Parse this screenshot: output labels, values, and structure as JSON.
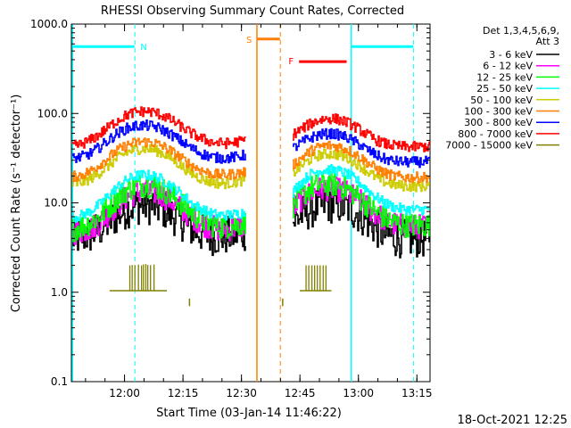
{
  "chart_data": {
    "type": "line",
    "title": "RHESSI Observing Summary Count Rates, Corrected",
    "xlabel": "Start Time (03-Jan-14 11:46:22)",
    "ylabel": "Corrected Count Rate (s⁻¹ detector⁻¹)",
    "y_scale": "log",
    "ylim": [
      0.1,
      1000
    ],
    "xlim_minutes": [
      0,
      92
    ],
    "x_tick_labels": [
      "12:00",
      "12:15",
      "12:30",
      "12:45",
      "13:00",
      "13:15"
    ],
    "x_tick_minutes": [
      13.63,
      28.63,
      43.63,
      58.63,
      73.63,
      88.63
    ],
    "y_tick_labels": [
      "0.1",
      "1.0",
      "10.0",
      "100.0",
      "1000.0"
    ],
    "y_tick_values": [
      0.1,
      1,
      10,
      100,
      1000
    ],
    "legend_header": [
      "Det 1,3,4,5,6,9,",
      "Att 3"
    ],
    "footer_timestamp": "18-Oct-2021 12:25",
    "gaps_minutes": [
      [
        47,
        54
      ]
    ],
    "series": [
      {
        "name": "3 - 6 keV",
        "color": "#000000",
        "values": [
          4,
          4.2,
          4.4,
          5,
          6,
          7.3,
          8.5,
          9.3,
          9.5,
          9.2,
          8.4,
          7.3,
          6.2,
          5.2,
          4.6,
          4.3,
          4.2,
          4.3,
          4.5,
          4.8,
          null,
          null,
          null,
          null,
          6,
          7.3,
          8.5,
          9.4,
          9.7,
          9.5,
          8.8,
          7.8,
          6.5,
          5.3,
          4.5,
          4.1,
          4,
          4,
          4,
          4.1
        ]
      },
      {
        "name": "6 - 12 keV",
        "color": "#ff00ff",
        "values": [
          4.6,
          4.8,
          5.2,
          6,
          7.5,
          9.5,
          11.5,
          13,
          13.6,
          13,
          11.8,
          10.2,
          8.4,
          7,
          6,
          5.4,
          5.1,
          5.1,
          5.3,
          5.7,
          null,
          null,
          null,
          null,
          8.5,
          11,
          13,
          14.2,
          14.5,
          14,
          12.8,
          11,
          9.2,
          7.6,
          6.5,
          5.8,
          5.5,
          5.4,
          5.4,
          5.5
        ]
      },
      {
        "name": "12 - 25 keV",
        "color": "#00ff00",
        "values": [
          5,
          5.4,
          6,
          7,
          9,
          11.5,
          14,
          15.6,
          16,
          15.4,
          13.8,
          11.8,
          9.6,
          7.8,
          6.6,
          5.8,
          5.5,
          5.5,
          5.7,
          6.1,
          null,
          null,
          null,
          null,
          9,
          12,
          14.6,
          16,
          16.4,
          15.8,
          14.2,
          12,
          9.8,
          8,
          6.8,
          6,
          5.7,
          5.6,
          5.6,
          5.7
        ]
      },
      {
        "name": "25 - 50 keV",
        "color": "#00ffff",
        "values": [
          6.8,
          7.2,
          8,
          9.5,
          12,
          15,
          18,
          20,
          20.6,
          19.8,
          17.8,
          15,
          12.4,
          10,
          8.6,
          7.7,
          7.3,
          7.3,
          7.5,
          8,
          null,
          null,
          null,
          null,
          13,
          17,
          21,
          23,
          23.5,
          22.8,
          20.8,
          17.8,
          14.5,
          11.8,
          10,
          9,
          8.5,
          8.4,
          8.4,
          8.5
        ]
      },
      {
        "name": "50 - 100 keV",
        "color": "#cccc00",
        "values": [
          16,
          16.8,
          18.5,
          21.5,
          26,
          31.5,
          36.5,
          39.8,
          40.5,
          39,
          35.5,
          30.5,
          25.5,
          21.5,
          18.8,
          17.2,
          16.5,
          16.6,
          17.2,
          18.3,
          null,
          null,
          null,
          null,
          21,
          26,
          31,
          34.5,
          35.5,
          34.5,
          31.5,
          27.5,
          23,
          19.5,
          17.2,
          16,
          15.5,
          15.3,
          15.3,
          15.5
        ]
      },
      {
        "name": "100 - 300 keV",
        "color": "#ff7f00",
        "values": [
          19.5,
          20.5,
          22.5,
          26.5,
          32,
          38.5,
          44,
          47.5,
          48.3,
          46.8,
          42.5,
          36.8,
          31,
          26.5,
          23.3,
          21.4,
          20.6,
          20.7,
          21.3,
          22.5,
          null,
          null,
          null,
          null,
          26,
          32,
          38,
          42.5,
          44,
          42.8,
          39.3,
          34.3,
          29,
          24.5,
          21.6,
          20,
          19.4,
          19.2,
          19.2,
          19.4
        ]
      },
      {
        "name": "300 - 800 keV",
        "color": "#0000ff",
        "values": [
          31,
          32.5,
          35.5,
          41.5,
          50,
          60,
          68,
          72.5,
          73.5,
          71.5,
          65,
          56.5,
          48,
          41,
          36,
          33,
          31.8,
          31.8,
          32.8,
          34.5,
          null,
          null,
          null,
          null,
          40,
          47,
          53.5,
          58,
          59.5,
          58,
          53.5,
          47,
          40,
          34.5,
          31,
          29.3,
          28.7,
          28.6,
          28.7,
          29
        ]
      },
      {
        "name": "800 - 7000 keV",
        "color": "#ff0000",
        "values": [
          43,
          45,
          50,
          58,
          70,
          84,
          96,
          104,
          106,
          103,
          94,
          82,
          70,
          60,
          53,
          48.5,
          46.5,
          46.5,
          48,
          50.5,
          null,
          null,
          null,
          null,
          57,
          67,
          77,
          85,
          88,
          86,
          79,
          69,
          59,
          51,
          46,
          43.5,
          42.5,
          42.3,
          42.4,
          42.8
        ]
      },
      {
        "name": "7000 - 15000 keV",
        "color": "#808000"
      }
    ],
    "regions": [
      {
        "label": "N",
        "color": "#00ffff",
        "y": 560
      },
      {
        "label": "S",
        "color": "#ff7f00",
        "y": 680
      },
      {
        "label": "F",
        "color": "#ff0000",
        "y": 380
      }
    ]
  }
}
